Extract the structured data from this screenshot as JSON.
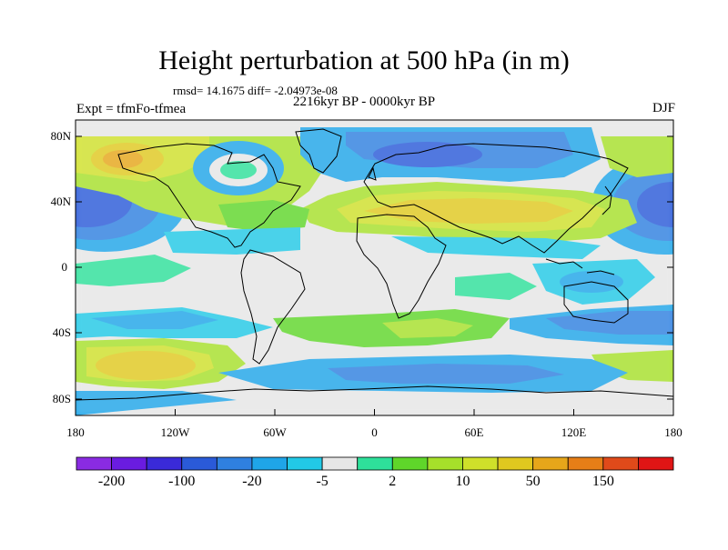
{
  "title": "Height perturbation at 500 hPa (in m)",
  "stats_line": "rmsd= 14.1675 diff= -2.04973e-08",
  "period": "2216kyr BP - 0000kyr BP",
  "experiment": "Expt = tfmFo-tfmea",
  "season": "DJF",
  "lat_labels": [
    "80N",
    "40N",
    "0",
    "40S",
    "80S"
  ],
  "lon_labels": [
    "180",
    "120W",
    "60W",
    "0",
    "60E",
    "120E",
    "180"
  ],
  "colorbar": {
    "colors": [
      "#8a2be2",
      "#6a1ce0",
      "#3a2ad8",
      "#2a5ad8",
      "#2f80e0",
      "#1fa5e8",
      "#22c9e6",
      "#e6e6e6",
      "#2ee09a",
      "#5fd62a",
      "#a6e02a",
      "#cfe02a",
      "#e0c81f",
      "#e6a61a",
      "#e67e17",
      "#e04a1a",
      "#e01515"
    ],
    "labels": [
      "-200",
      "-100",
      "-20",
      "-5",
      "2",
      "10",
      "50",
      "150"
    ]
  },
  "map_features": {
    "background_color": "#e6e6e6",
    "projection": "cylindrical-equidistant",
    "coastlines": true
  }
}
